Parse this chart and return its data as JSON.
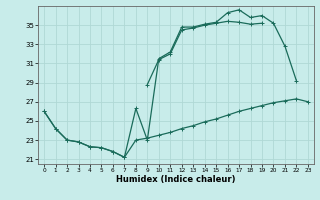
{
  "xlabel": "Humidex (Indice chaleur)",
  "bg_color": "#c8ecea",
  "grid_color": "#b0d8d5",
  "line_color": "#1a6b5a",
  "xlim": [
    -0.5,
    23.5
  ],
  "ylim": [
    20.5,
    37.0
  ],
  "yticks": [
    21,
    23,
    25,
    27,
    29,
    31,
    33,
    35
  ],
  "xticks": [
    0,
    1,
    2,
    3,
    4,
    5,
    6,
    7,
    8,
    9,
    10,
    11,
    12,
    13,
    14,
    15,
    16,
    17,
    18,
    19,
    20,
    21,
    22,
    23
  ],
  "line1_y": [
    26.0,
    24.2,
    23.0,
    22.8,
    22.3,
    22.2,
    21.8,
    21.2,
    26.3,
    23.0,
    31.5,
    32.2,
    34.8,
    34.8,
    35.1,
    35.3,
    36.3,
    36.6,
    35.8,
    36.0,
    35.2,
    32.8,
    29.2,
    null
  ],
  "line2_y": [
    null,
    null,
    null,
    null,
    null,
    null,
    null,
    null,
    null,
    28.8,
    31.4,
    32.0,
    34.5,
    34.7,
    35.0,
    35.2,
    35.4,
    35.3,
    35.1,
    35.2,
    null,
    null,
    null,
    null
  ],
  "line3_y": [
    26.0,
    24.2,
    23.0,
    22.8,
    22.3,
    22.2,
    21.8,
    21.2,
    23.0,
    23.2,
    23.5,
    23.8,
    24.2,
    24.5,
    24.9,
    25.2,
    25.6,
    26.0,
    26.3,
    26.6,
    26.9,
    27.1,
    27.3,
    27.0
  ]
}
